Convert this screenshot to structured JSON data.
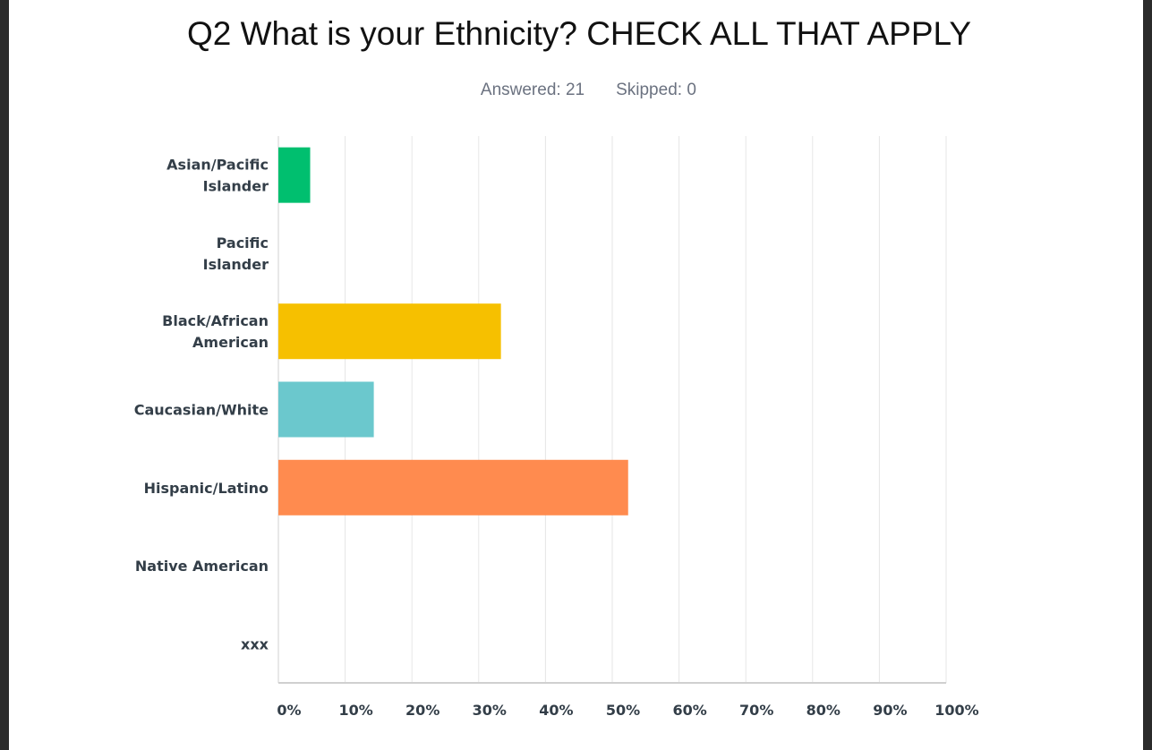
{
  "slide": {
    "title": "Q2 What is your Ethnicity?  CHECK ALL THAT APPLY",
    "answered": "Answered: 21",
    "skipped": "Skipped: 0"
  },
  "chart_data": {
    "type": "bar",
    "orientation": "horizontal",
    "title": "Q2 What is your Ethnicity?  CHECK ALL THAT APPLY",
    "xlabel": "",
    "ylabel": "",
    "xlim": [
      0,
      100
    ],
    "x_ticks": [
      "0%",
      "10%",
      "20%",
      "30%",
      "40%",
      "50%",
      "60%",
      "70%",
      "80%",
      "90%",
      "100%"
    ],
    "grid": true,
    "categories": [
      [
        "Asian/Pacific",
        "Islander"
      ],
      [
        "Pacific",
        "Islander"
      ],
      [
        "Black/African",
        "American"
      ],
      [
        "Caucasian/White"
      ],
      [
        "Hispanic/Latino"
      ],
      [
        "Native American"
      ],
      [
        "xxx"
      ]
    ],
    "values": [
      4.76,
      0,
      33.33,
      14.29,
      52.38,
      0,
      0
    ],
    "colors": [
      "#00bf6f",
      "#a05ea8",
      "#f6c000",
      "#6bc8cd",
      "#ff8b4f",
      "#7d8ec4",
      "#d25f90"
    ]
  }
}
